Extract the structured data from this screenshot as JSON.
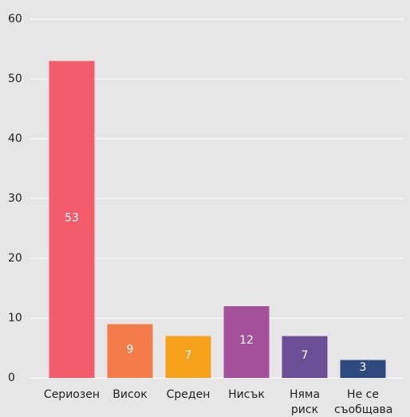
{
  "chart_data": {
    "type": "bar",
    "categories": [
      "Сериозен",
      "Висок",
      "Среден",
      "Нисък",
      "Няма риск",
      "Не се съобщава"
    ],
    "values": [
      53,
      9,
      7,
      12,
      7,
      3
    ],
    "colors": [
      "#f25c6b",
      "#f47c4a",
      "#f7a21b",
      "#a4509a",
      "#6a4f96",
      "#2e4a7f"
    ],
    "ylim": [
      0,
      60
    ],
    "yticks": [
      0,
      10,
      20,
      30,
      40,
      50,
      60
    ],
    "grid": true
  }
}
